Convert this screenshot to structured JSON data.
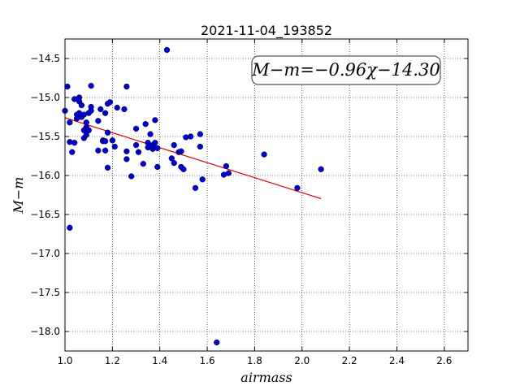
{
  "chart_data": {
    "type": "scatter",
    "title": "2021-11-04_193852",
    "xlabel": "airmass",
    "ylabel": "M−m",
    "xlim": [
      1.0,
      2.7
    ],
    "ylim": [
      -18.25,
      -14.25
    ],
    "xticks": [
      1.0,
      1.2,
      1.4,
      1.6,
      1.8,
      2.0,
      2.2,
      2.4,
      2.6
    ],
    "yticks": [
      -14.5,
      -15.0,
      -15.5,
      -16.0,
      -16.5,
      -17.0,
      -17.5,
      -18.0
    ],
    "xtick_labels": [
      "1.0",
      "1.2",
      "1.4",
      "1.6",
      "1.8",
      "2.0",
      "2.2",
      "2.4",
      "2.6"
    ],
    "ytick_labels": [
      "−14.5",
      "−15.0",
      "−15.5",
      "−16.0",
      "−16.5",
      "−17.0",
      "−17.5",
      "−18.0"
    ],
    "grid": true,
    "annotation": "M−m=−0.96χ−14.30",
    "annotation_position": "top-right",
    "point_color": "#0000cc",
    "fit_color": "#dd0000",
    "fit": {
      "slope": -0.96,
      "intercept": -14.3,
      "x_range": [
        1.0,
        2.08
      ]
    },
    "points": [
      [
        1.0,
        -15.17
      ],
      [
        1.01,
        -14.86
      ],
      [
        1.02,
        -15.32
      ],
      [
        1.02,
        -15.57
      ],
      [
        1.02,
        -16.67
      ],
      [
        1.03,
        -15.7
      ],
      [
        1.04,
        -15.02
      ],
      [
        1.04,
        -15.58
      ],
      [
        1.05,
        -15.27
      ],
      [
        1.05,
        -15.22
      ],
      [
        1.06,
        -15.2
      ],
      [
        1.06,
        -15.0
      ],
      [
        1.06,
        -15.05
      ],
      [
        1.07,
        -15.1
      ],
      [
        1.07,
        -15.25
      ],
      [
        1.08,
        -15.22
      ],
      [
        1.08,
        -15.52
      ],
      [
        1.08,
        -15.42
      ],
      [
        1.09,
        -15.48
      ],
      [
        1.09,
        -15.32
      ],
      [
        1.09,
        -15.38
      ],
      [
        1.1,
        -15.42
      ],
      [
        1.1,
        -15.2
      ],
      [
        1.1,
        -15.42
      ],
      [
        1.11,
        -14.85
      ],
      [
        1.11,
        -15.12
      ],
      [
        1.11,
        -15.17
      ],
      [
        1.14,
        -15.68
      ],
      [
        1.14,
        -15.3
      ],
      [
        1.15,
        -15.15
      ],
      [
        1.16,
        -15.55
      ],
      [
        1.16,
        -15.56
      ],
      [
        1.17,
        -15.56
      ],
      [
        1.17,
        -15.2
      ],
      [
        1.17,
        -15.68
      ],
      [
        1.18,
        -15.08
      ],
      [
        1.18,
        -15.9
      ],
      [
        1.18,
        -15.45
      ],
      [
        1.19,
        -15.06
      ],
      [
        1.2,
        -15.55
      ],
      [
        1.21,
        -15.63
      ],
      [
        1.22,
        -15.13
      ],
      [
        1.25,
        -15.15
      ],
      [
        1.26,
        -14.86
      ],
      [
        1.26,
        -15.69
      ],
      [
        1.26,
        -15.79
      ],
      [
        1.28,
        -16.01
      ],
      [
        1.3,
        -15.4
      ],
      [
        1.3,
        -15.61
      ],
      [
        1.31,
        -15.7
      ],
      [
        1.33,
        -15.85
      ],
      [
        1.34,
        -15.34
      ],
      [
        1.35,
        -15.58
      ],
      [
        1.35,
        -15.64
      ],
      [
        1.36,
        -15.47
      ],
      [
        1.37,
        -15.66
      ],
      [
        1.37,
        -15.61
      ],
      [
        1.38,
        -15.29
      ],
      [
        1.38,
        -15.58
      ],
      [
        1.39,
        -15.65
      ],
      [
        1.39,
        -15.89
      ],
      [
        1.43,
        -14.39
      ],
      [
        1.45,
        -15.78
      ],
      [
        1.46,
        -15.84
      ],
      [
        1.46,
        -15.61
      ],
      [
        1.48,
        -15.7
      ],
      [
        1.49,
        -15.69
      ],
      [
        1.49,
        -15.89
      ],
      [
        1.5,
        -15.92
      ],
      [
        1.51,
        -15.51
      ],
      [
        1.53,
        -15.5
      ],
      [
        1.55,
        -16.16
      ],
      [
        1.57,
        -15.47
      ],
      [
        1.57,
        -15.63
      ],
      [
        1.58,
        -16.05
      ],
      [
        1.64,
        -18.14
      ],
      [
        1.67,
        -15.99
      ],
      [
        1.68,
        -15.88
      ],
      [
        1.69,
        -15.97
      ],
      [
        1.84,
        -15.73
      ],
      [
        1.98,
        -16.16
      ],
      [
        2.08,
        -15.92
      ]
    ]
  }
}
